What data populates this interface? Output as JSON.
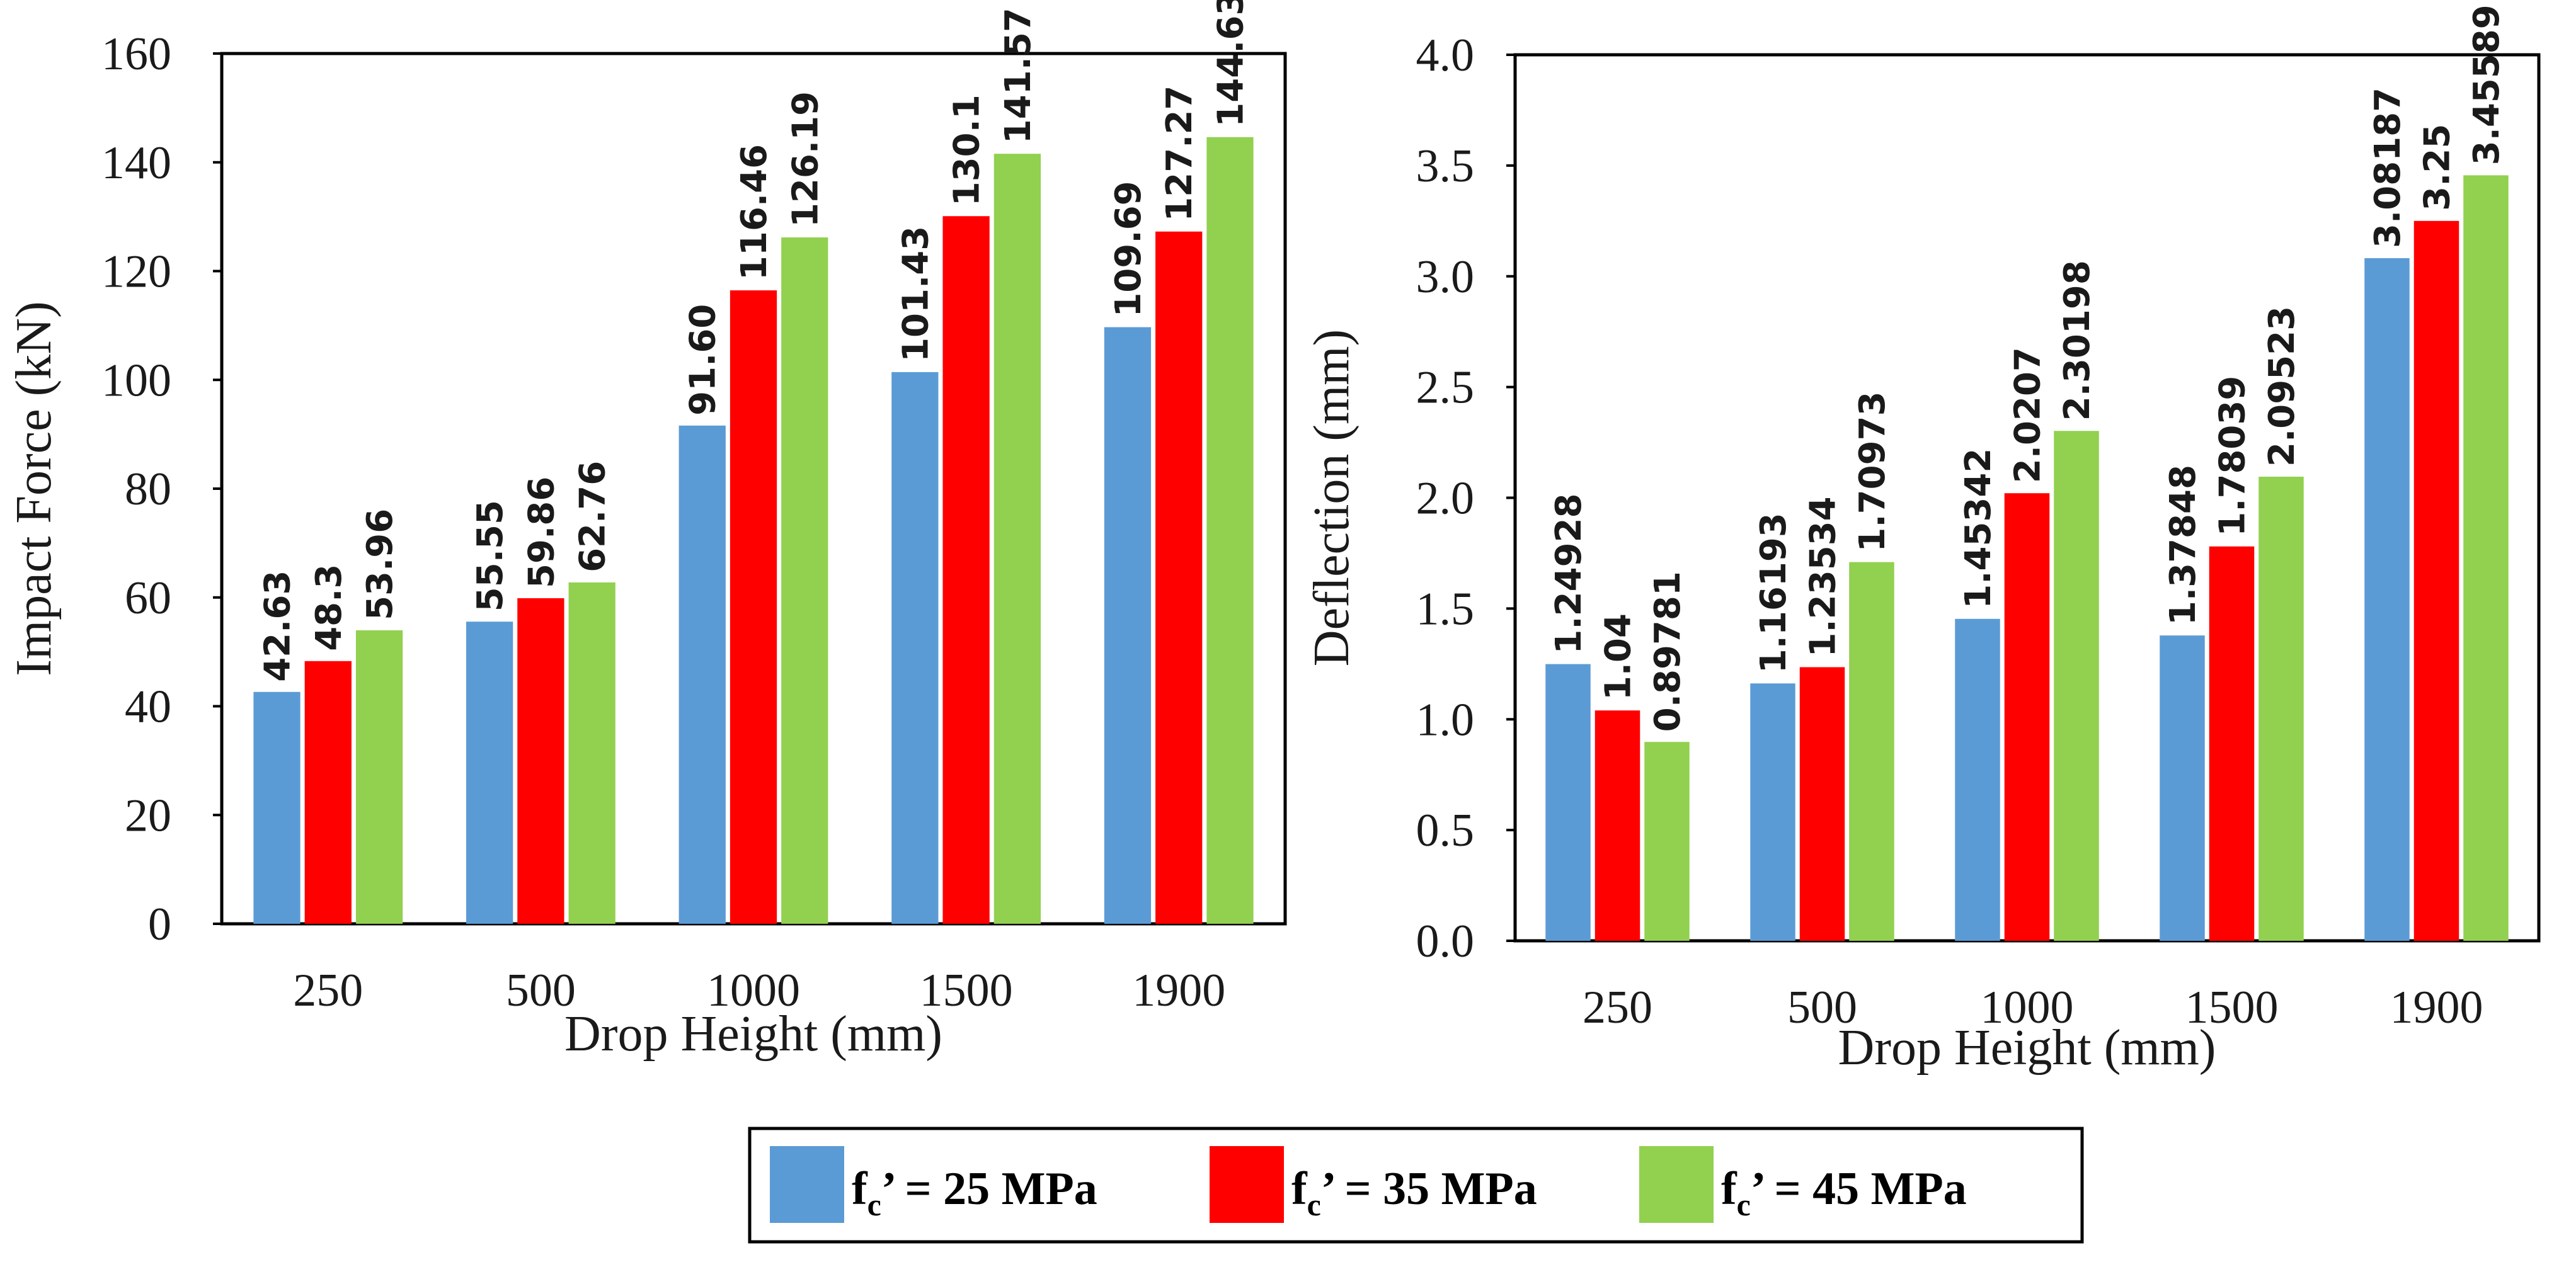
{
  "colors": {
    "s25": "#5b9bd5",
    "s35": "#ff0000",
    "s45": "#92d050"
  },
  "legend": {
    "prefix": "f",
    "subscript": "c",
    "items": [
      {
        "series_index": 0,
        "suffix": "’ = 25 MPa"
      },
      {
        "series_index": 1,
        "suffix": "’ = 35 MPa"
      },
      {
        "series_index": 2,
        "suffix": "’ = 45 MPa"
      }
    ]
  },
  "chart_data": [
    {
      "type": "bar",
      "title": "",
      "xlabel": "Drop Height (mm)",
      "ylabel": "Impact Force (kN)",
      "categories": [
        "250",
        "500",
        "1000",
        "1500",
        "1900"
      ],
      "ylim": [
        0,
        160
      ],
      "yticks": [
        "0",
        "20",
        "40",
        "60",
        "80",
        "100",
        "120",
        "140",
        "160"
      ],
      "series": [
        {
          "name": "fc’ = 25 MPa",
          "values": [
            42.63,
            55.55,
            91.6,
            101.43,
            109.69
          ],
          "labels": [
            "42.63",
            "55.55",
            "91.60",
            "101.43",
            "109.69"
          ]
        },
        {
          "name": "fc’ = 35 MPa",
          "values": [
            48.3,
            59.86,
            116.46,
            130.1,
            127.27
          ],
          "labels": [
            "48.3",
            "59.86",
            "116.46",
            "130.1",
            "127.27"
          ]
        },
        {
          "name": "fc’ = 45 MPa",
          "values": [
            53.96,
            62.76,
            126.19,
            141.57,
            144.63
          ],
          "labels": [
            "53.96",
            "62.76",
            "126.19",
            "141.57",
            "144.63"
          ]
        }
      ]
    },
    {
      "type": "bar",
      "title": "",
      "xlabel": "Drop Height (mm)",
      "ylabel": "Deflection (mm)",
      "categories": [
        "250",
        "500",
        "1000",
        "1500",
        "1900"
      ],
      "ylim": [
        0,
        4.0
      ],
      "yticks": [
        "0.0",
        "0.5",
        "1.0",
        "1.5",
        "2.0",
        "2.5",
        "3.0",
        "3.5",
        "4.0"
      ],
      "series": [
        {
          "name": "fc’ = 25 MPa",
          "values": [
            1.24928,
            1.16193,
            1.45342,
            1.37848,
            3.08187
          ],
          "labels": [
            "1.24928",
            "1.16193",
            "1.45342",
            "1.37848",
            "3.08187"
          ]
        },
        {
          "name": "fc’ = 35 MPa",
          "values": [
            1.04,
            1.23534,
            2.0207,
            1.78039,
            3.25
          ],
          "labels": [
            "1.04",
            "1.23534",
            "2.0207",
            "1.78039",
            "3.25"
          ]
        },
        {
          "name": "fc’ = 45 MPa",
          "values": [
            0.89781,
            1.70973,
            2.30198,
            2.09523,
            3.45589
          ],
          "labels": [
            "0.89781",
            "1.70973",
            "2.30198",
            "2.09523",
            "3.45589"
          ]
        }
      ]
    }
  ]
}
